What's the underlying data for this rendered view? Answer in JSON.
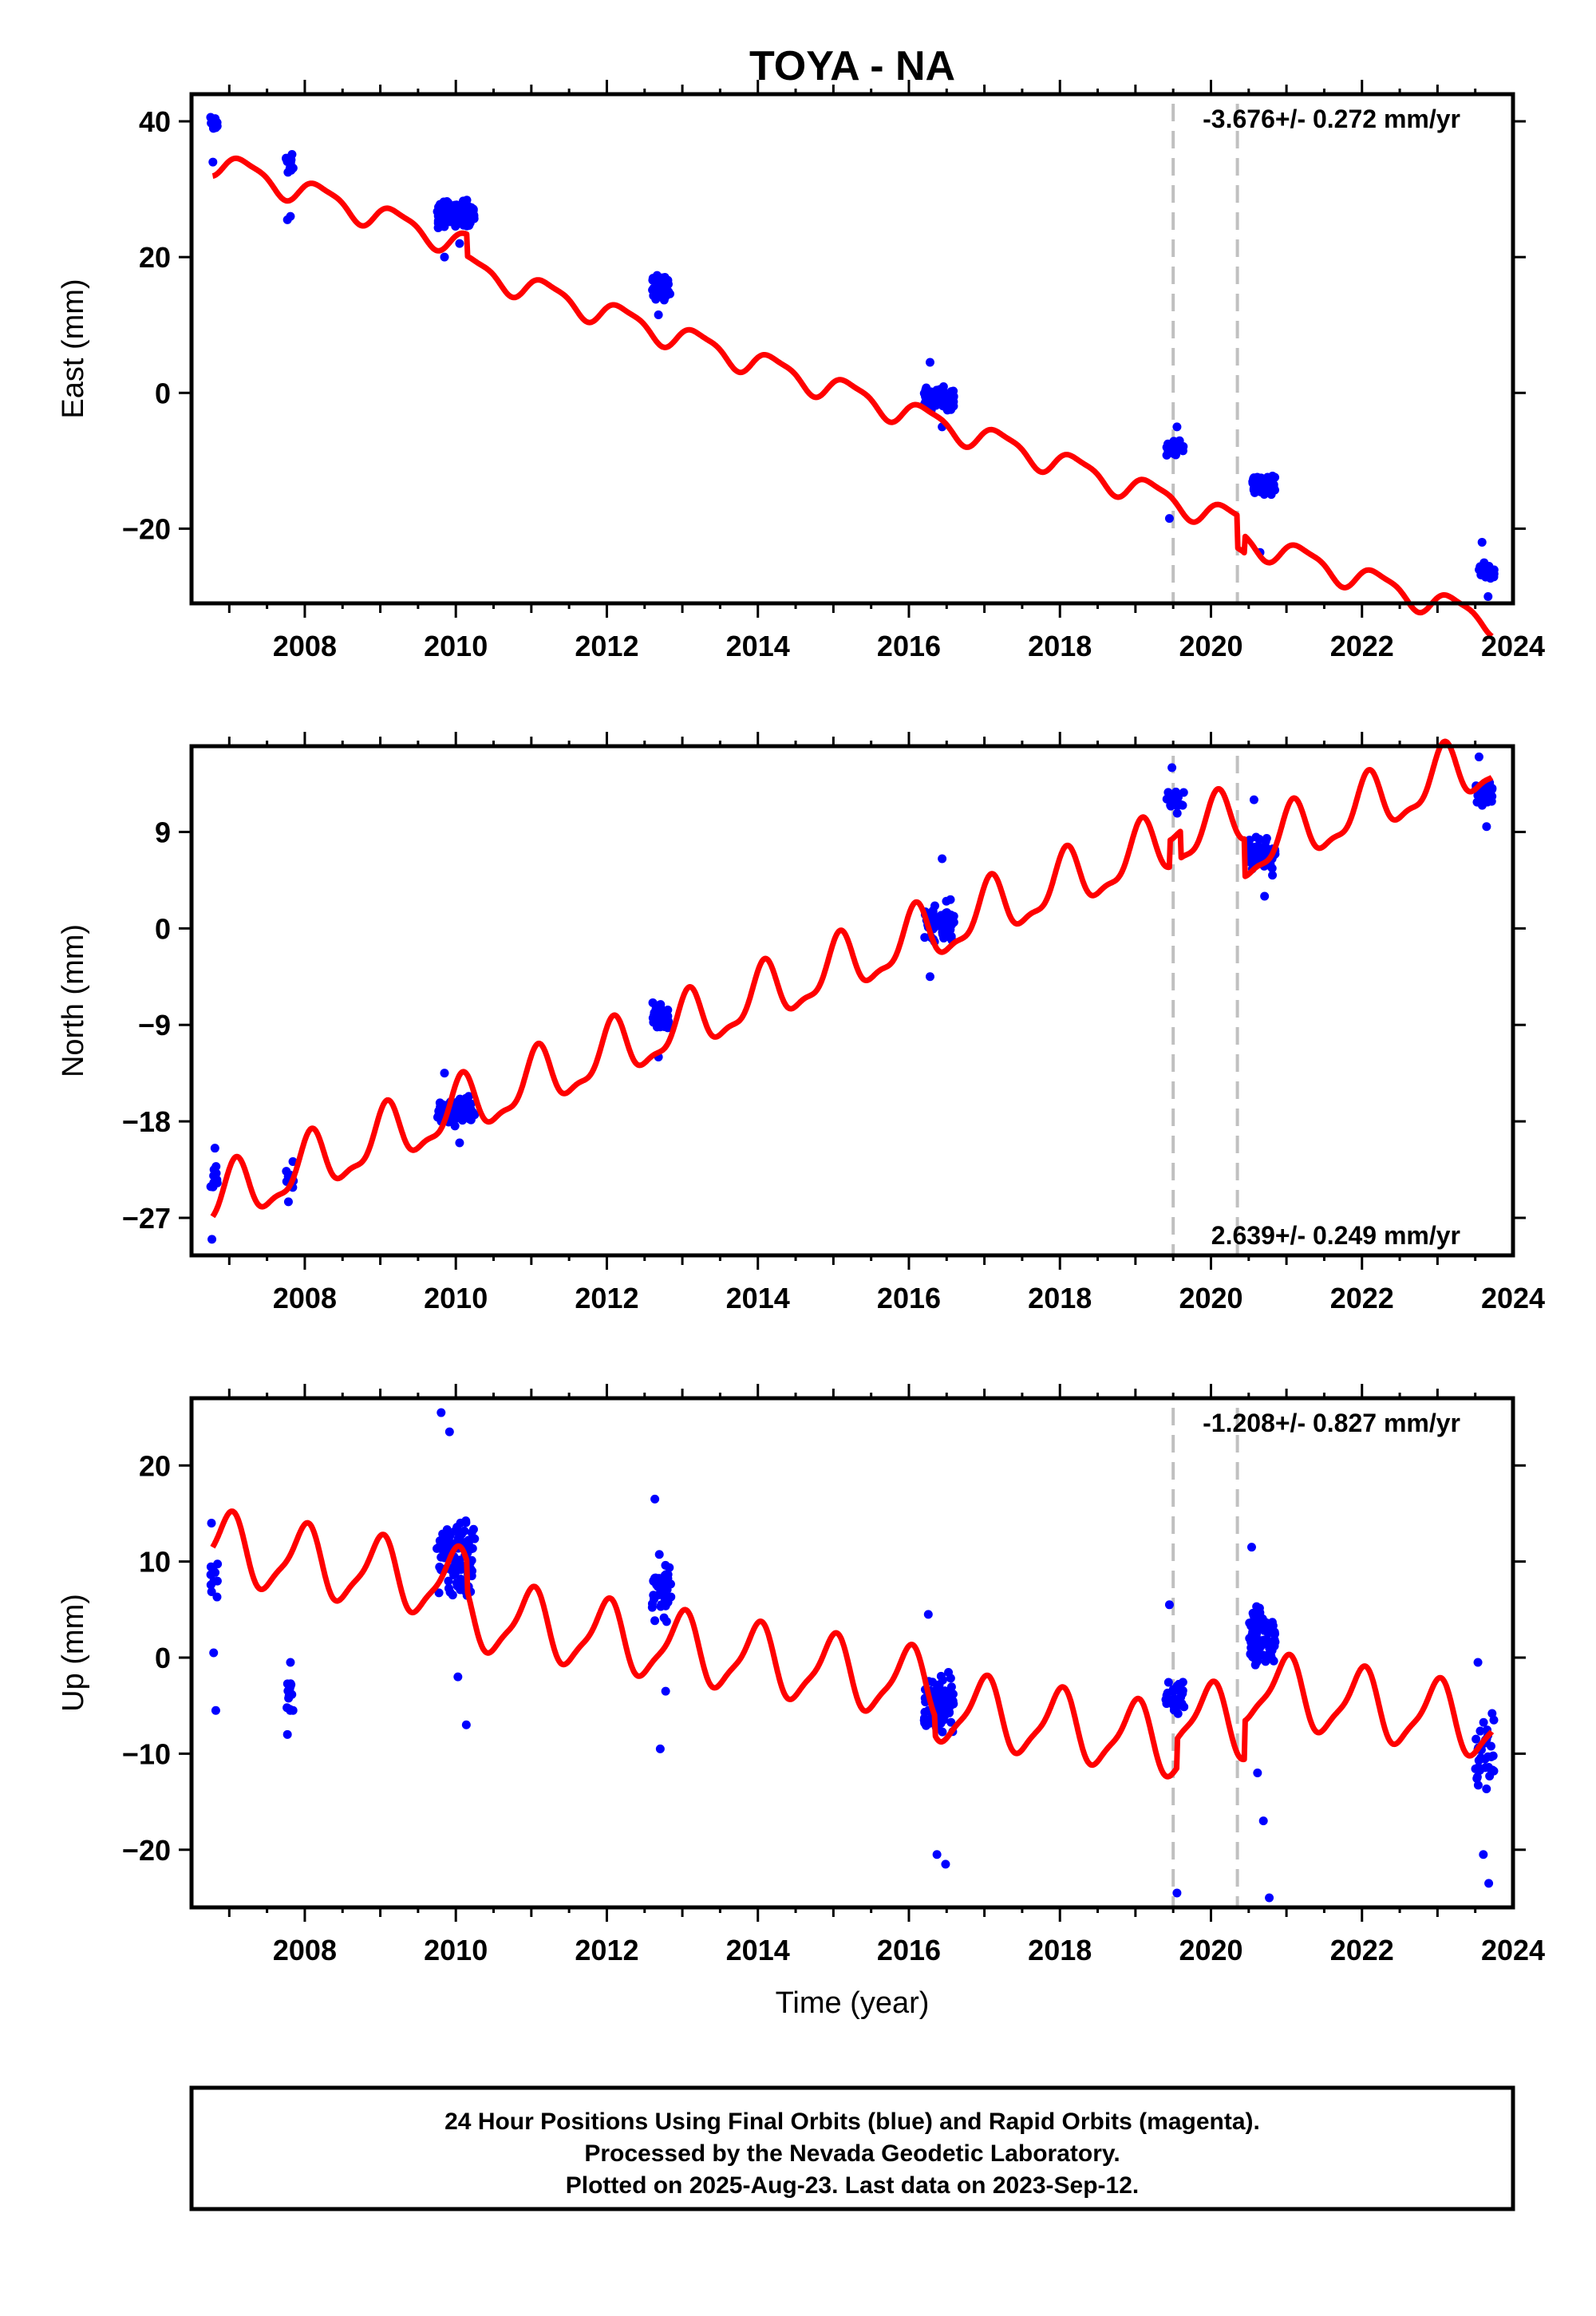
{
  "title": "TOYA - NA",
  "x_axis_label": "Time (year)",
  "footer": {
    "lines": [
      "24 Hour Positions Using Final Orbits (blue) and Rapid Orbits (magenta).",
      "Processed by the Nevada Geodetic Laboratory.",
      "Plotted on 2025-Aug-23. Last data on 2023-Sep-12."
    ]
  },
  "colors": {
    "data": "#0000ff",
    "model": "#ff0000",
    "steps": "#c0c0c0",
    "frame": "#000000"
  },
  "chart_data": [
    {
      "type": "scatter",
      "panel": "east",
      "ylabel": "East (mm)",
      "rate_text": "-3.676+/- 0.272 mm/yr",
      "rate_position": "top-right",
      "xlim": [
        2006.5,
        2024.0
      ],
      "ylim": [
        -31,
        44
      ],
      "xticks": [
        2008,
        2010,
        2012,
        2014,
        2016,
        2018,
        2020,
        2022,
        2024
      ],
      "yticks": [
        40,
        20,
        0,
        -20
      ],
      "step_epochs": [
        2019.5,
        2020.35
      ],
      "model": {
        "rate": -3.676,
        "ref_year": 2015.0,
        "offset": 3.9,
        "annual_amp": 1.8,
        "annual_phase": 0.2,
        "semiannual_amp": 0.5,
        "semiannual_phase": 1.3,
        "steps": [
          {
            "t": 2010.15,
            "dy": -3.2
          },
          {
            "t": 2020.35,
            "dy": -4.8
          },
          {
            "t": 2020.45,
            "dy": 2.5
          }
        ]
      },
      "clusters": [
        {
          "t0": 2006.75,
          "t1": 2006.85,
          "center": 40.0,
          "spread": 2.2,
          "n": 12,
          "outliers": [
            34.0
          ]
        },
        {
          "t0": 2007.75,
          "t1": 2007.85,
          "center": 33.5,
          "spread": 2.2,
          "n": 12,
          "outliers": [
            25.5,
            26.0
          ]
        },
        {
          "t0": 2009.75,
          "t1": 2010.25,
          "center": 26.5,
          "spread": 3.0,
          "n": 90,
          "outliers": [
            20.0,
            22.0
          ]
        },
        {
          "t0": 2012.6,
          "t1": 2012.85,
          "center": 15.5,
          "spread": 2.2,
          "n": 40,
          "outliers": [
            11.5
          ]
        },
        {
          "t0": 2016.2,
          "t1": 2016.6,
          "center": -1.0,
          "spread": 2.2,
          "n": 80,
          "outliers": [
            4.5,
            -5.0
          ]
        },
        {
          "t0": 2019.4,
          "t1": 2019.65,
          "center": -8.0,
          "spread": 1.5,
          "n": 22,
          "outliers": [
            -18.5,
            -5.0
          ]
        },
        {
          "t0": 2020.55,
          "t1": 2020.85,
          "center": -13.5,
          "spread": 1.8,
          "n": 70,
          "outliers": [
            -23.5
          ]
        },
        {
          "t0": 2023.55,
          "t1": 2023.75,
          "center": -26.5,
          "spread": 1.6,
          "n": 28,
          "outliers": [
            -22.0,
            -30.0
          ]
        }
      ]
    },
    {
      "type": "scatter",
      "panel": "north",
      "ylabel": "North (mm)",
      "rate_text": "2.639+/- 0.249 mm/yr",
      "rate_position": "bottom-right",
      "xlim": [
        2006.5,
        2024.0
      ],
      "ylim": [
        -30.5,
        17
      ],
      "xticks": [
        2008,
        2010,
        2012,
        2014,
        2016,
        2018,
        2020,
        2022,
        2024
      ],
      "yticks": [
        9,
        0,
        -9,
        -18,
        -27
      ],
      "step_epochs": [
        2019.5,
        2020.35
      ],
      "model": {
        "rate": 2.639,
        "ref_year": 2015.0,
        "offset": -3.9,
        "annual_amp": 2.6,
        "annual_phase": 1.1,
        "semiannual_amp": 0.9,
        "semiannual_phase": 0.3,
        "steps": [
          {
            "t": 2019.45,
            "dy": 2.5
          },
          {
            "t": 2019.6,
            "dy": -2.5
          },
          {
            "t": 2020.45,
            "dy": -3.5
          }
        ]
      },
      "clusters": [
        {
          "t0": 2006.75,
          "t1": 2006.85,
          "center": -23.0,
          "spread": 1.8,
          "n": 10,
          "outliers": [
            -29.0,
            -20.5
          ]
        },
        {
          "t0": 2007.75,
          "t1": 2007.85,
          "center": -23.0,
          "spread": 1.8,
          "n": 12,
          "outliers": [
            -25.5
          ]
        },
        {
          "t0": 2009.75,
          "t1": 2010.25,
          "center": -17.0,
          "spread": 1.6,
          "n": 80,
          "outliers": [
            -13.5,
            -20.0
          ]
        },
        {
          "t0": 2012.6,
          "t1": 2012.85,
          "center": -8.5,
          "spread": 1.8,
          "n": 30,
          "outliers": [
            -12.0
          ]
        },
        {
          "t0": 2016.2,
          "t1": 2016.6,
          "center": 0.5,
          "spread": 2.5,
          "n": 70,
          "outliers": [
            -4.5,
            6.5
          ]
        },
        {
          "t0": 2019.4,
          "t1": 2019.65,
          "center": 12.0,
          "spread": 1.6,
          "n": 20,
          "outliers": [
            15.0
          ]
        },
        {
          "t0": 2020.5,
          "t1": 2020.85,
          "center": 7.0,
          "spread": 2.3,
          "n": 60,
          "outliers": [
            12.0,
            3.0
          ]
        },
        {
          "t0": 2023.5,
          "t1": 2023.75,
          "center": 12.5,
          "spread": 2.0,
          "n": 30,
          "outliers": [
            16.0,
            9.5
          ]
        }
      ]
    },
    {
      "type": "scatter",
      "panel": "up",
      "ylabel": "Up (mm)",
      "rate_text": "-1.208+/- 0.827 mm/yr",
      "rate_position": "top-right",
      "xlim": [
        2006.5,
        2024.0
      ],
      "ylim": [
        -26,
        27
      ],
      "xticks": [
        2008,
        2010,
        2012,
        2014,
        2016,
        2018,
        2020,
        2022,
        2024
      ],
      "yticks": [
        20,
        10,
        0,
        -10,
        -20
      ],
      "step_epochs": [
        2019.5,
        2020.35
      ],
      "model": {
        "rate": -1.208,
        "ref_year": 2015.0,
        "offset": 1.5,
        "annual_amp": 3.5,
        "annual_phase": 1.6,
        "semiannual_amp": 0.9,
        "semiannual_phase": 0.5,
        "steps": [
          {
            "t": 2010.15,
            "dy": -3.0
          },
          {
            "t": 2016.35,
            "dy": -2.0
          },
          {
            "t": 2019.55,
            "dy": 3.0
          },
          {
            "t": 2020.45,
            "dy": 4.0
          }
        ]
      },
      "clusters": [
        {
          "t0": 2006.75,
          "t1": 2006.85,
          "center": 8.0,
          "spread": 3.0,
          "n": 10,
          "outliers": [
            14.0,
            0.5,
            -5.5
          ]
        },
        {
          "t0": 2007.75,
          "t1": 2007.85,
          "center": -4.0,
          "spread": 2.5,
          "n": 16,
          "outliers": [
            -8.0,
            -0.5
          ]
        },
        {
          "t0": 2009.75,
          "t1": 2010.25,
          "center": 10.0,
          "spread": 6.0,
          "n": 100,
          "outliers": [
            25.5,
            23.5,
            -2.0,
            -7.0
          ]
        },
        {
          "t0": 2012.6,
          "t1": 2012.85,
          "center": 7.0,
          "spread": 4.0,
          "n": 45,
          "outliers": [
            16.5,
            -9.5,
            -3.5
          ]
        },
        {
          "t0": 2016.2,
          "t1": 2016.6,
          "center": -5.0,
          "spread": 4.5,
          "n": 90,
          "outliers": [
            4.5,
            -20.5,
            -21.5
          ]
        },
        {
          "t0": 2019.4,
          "t1": 2019.65,
          "center": -4.0,
          "spread": 2.5,
          "n": 30,
          "outliers": [
            5.5,
            -24.5
          ]
        },
        {
          "t0": 2020.5,
          "t1": 2020.85,
          "center": 2.0,
          "spread": 4.5,
          "n": 90,
          "outliers": [
            11.5,
            -12.0,
            -17.0,
            -25.0
          ]
        },
        {
          "t0": 2023.5,
          "t1": 2023.75,
          "center": -10.0,
          "spread": 5.0,
          "n": 35,
          "outliers": [
            -0.5,
            -20.5,
            -23.5
          ]
        }
      ]
    }
  ]
}
